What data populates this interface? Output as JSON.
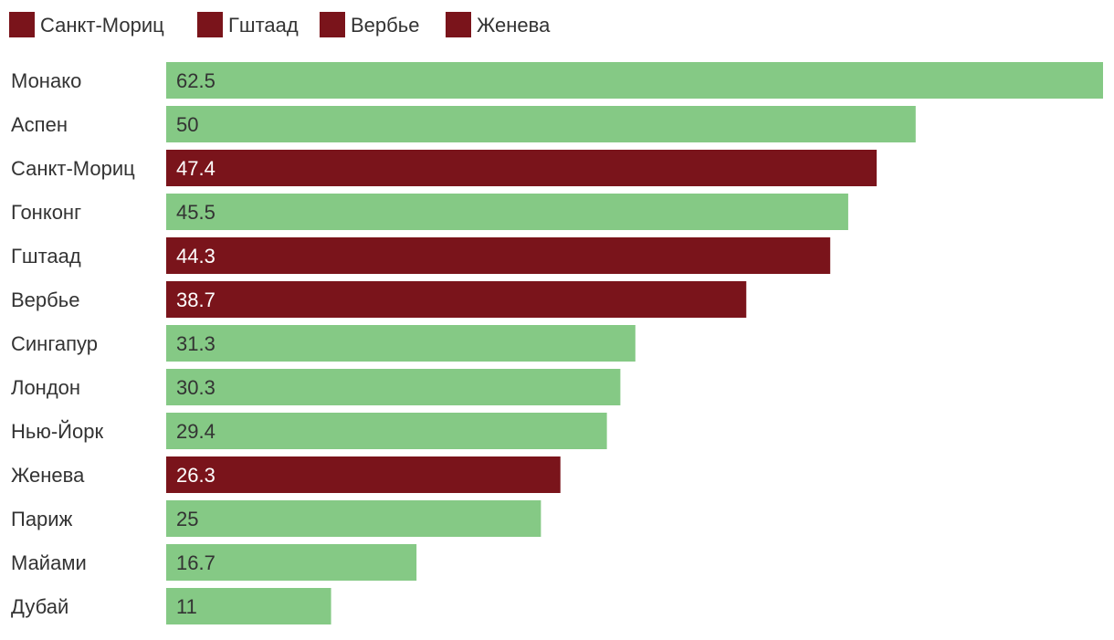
{
  "chart_data": {
    "type": "bar",
    "orientation": "horizontal",
    "title": "",
    "xlabel": "",
    "ylabel": "",
    "xlim": [
      0,
      62.5
    ],
    "grid": false,
    "legend_position": "top-left",
    "legend": [
      "Санкт-Мориц",
      "Гштаад",
      "Вербье",
      "Женева"
    ],
    "categories": [
      "Монако",
      "Аспен",
      "Санкт-Мориц",
      "Гонконг",
      "Гштаад",
      "Вербье",
      "Сингапур",
      "Лондон",
      "Нью-Йорк",
      "Женева",
      "Париж",
      "Майами",
      "Дубай"
    ],
    "values": [
      62.5,
      50,
      47.4,
      45.5,
      44.3,
      38.7,
      31.3,
      30.3,
      29.4,
      26.3,
      25,
      16.7,
      11
    ],
    "value_labels": [
      "62.5",
      "50",
      "47.4",
      "45.5",
      "44.3",
      "38.7",
      "31.3",
      "30.3",
      "29.4",
      "26.3",
      "25",
      "16.7",
      "11"
    ],
    "highlighted": [
      "Санкт-Мориц",
      "Гштаад",
      "Вербье",
      "Женева"
    ],
    "colors": {
      "highlight": "#7a141b",
      "default": "#85c985",
      "label_on_highlight": "#ffffff",
      "label_on_default": "#333333",
      "category_text": "#333333",
      "legend_text": "#333333"
    }
  }
}
